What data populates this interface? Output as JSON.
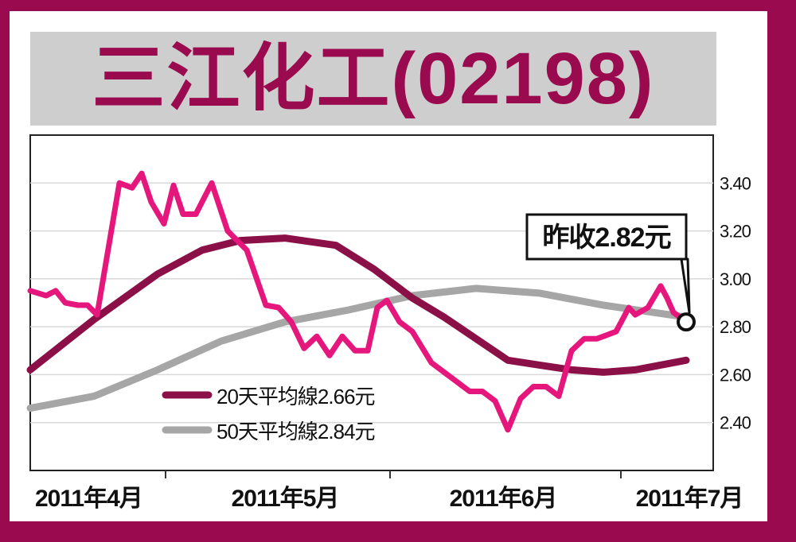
{
  "title": "三江化工(02198)",
  "colors": {
    "frame": "#9a0a4f",
    "price": "#e5177d",
    "ma20": "#8c1048",
    "ma50": "#a6a6a6",
    "grid": "#d9d9d9"
  },
  "chart_data": {
    "type": "line",
    "title": "三江化工(02198)",
    "ylim": [
      2.2,
      3.6
    ],
    "y_ticks": [
      "2.40",
      "2.60",
      "2.80",
      "3.00",
      "3.20",
      "3.40"
    ],
    "x_labels": [
      "2011年4月",
      "2011年5月",
      "2011年6月",
      "2011年7月"
    ],
    "annotation": "昨收2.82元",
    "legend": [
      "20天平均線2.66元",
      "50天平均線2.84元"
    ],
    "series": [
      {
        "key": "price",
        "values": [
          [
            0,
            2.95
          ],
          [
            0.025,
            2.93
          ],
          [
            0.04,
            2.95
          ],
          [
            0.055,
            2.9
          ],
          [
            0.075,
            2.89
          ],
          [
            0.09,
            2.89
          ],
          [
            0.105,
            2.85
          ],
          [
            0.14,
            3.4
          ],
          [
            0.16,
            3.38
          ],
          [
            0.175,
            3.44
          ],
          [
            0.19,
            3.32
          ],
          [
            0.21,
            3.23
          ],
          [
            0.225,
            3.39
          ],
          [
            0.24,
            3.27
          ],
          [
            0.26,
            3.27
          ],
          [
            0.285,
            3.4
          ],
          [
            0.31,
            3.2
          ],
          [
            0.34,
            3.12
          ],
          [
            0.37,
            2.89
          ],
          [
            0.39,
            2.88
          ],
          [
            0.41,
            2.82
          ],
          [
            0.43,
            2.71
          ],
          [
            0.45,
            2.76
          ],
          [
            0.47,
            2.68
          ],
          [
            0.49,
            2.76
          ],
          [
            0.51,
            2.7
          ],
          [
            0.53,
            2.7
          ],
          [
            0.545,
            2.88
          ],
          [
            0.56,
            2.91
          ],
          [
            0.58,
            2.82
          ],
          [
            0.6,
            2.78
          ],
          [
            0.63,
            2.65
          ],
          [
            0.66,
            2.59
          ],
          [
            0.69,
            2.53
          ],
          [
            0.71,
            2.53
          ],
          [
            0.73,
            2.49
          ],
          [
            0.75,
            2.37
          ],
          [
            0.77,
            2.5
          ],
          [
            0.79,
            2.55
          ],
          [
            0.81,
            2.55
          ],
          [
            0.83,
            2.51
          ],
          [
            0.85,
            2.7
          ],
          [
            0.87,
            2.75
          ],
          [
            0.89,
            2.75
          ],
          [
            0.91,
            2.77
          ],
          [
            0.92,
            2.78
          ],
          [
            0.94,
            2.88
          ],
          [
            0.95,
            2.85
          ],
          [
            0.97,
            2.88
          ],
          [
            0.99,
            2.97
          ],
          [
            1.0,
            2.92
          ],
          [
            1.01,
            2.86
          ],
          [
            1.03,
            2.82
          ]
        ]
      },
      {
        "key": "ma20",
        "values": [
          [
            0,
            2.62
          ],
          [
            0.1,
            2.83
          ],
          [
            0.2,
            3.02
          ],
          [
            0.27,
            3.12
          ],
          [
            0.33,
            3.16
          ],
          [
            0.4,
            3.17
          ],
          [
            0.48,
            3.14
          ],
          [
            0.54,
            3.04
          ],
          [
            0.6,
            2.92
          ],
          [
            0.65,
            2.84
          ],
          [
            0.7,
            2.75
          ],
          [
            0.75,
            2.66
          ],
          [
            0.8,
            2.64
          ],
          [
            0.85,
            2.62
          ],
          [
            0.9,
            2.61
          ],
          [
            0.95,
            2.62
          ],
          [
            1.03,
            2.66
          ]
        ]
      },
      {
        "key": "ma50",
        "values": [
          [
            0,
            2.46
          ],
          [
            0.1,
            2.51
          ],
          [
            0.2,
            2.62
          ],
          [
            0.3,
            2.74
          ],
          [
            0.4,
            2.82
          ],
          [
            0.5,
            2.87
          ],
          [
            0.6,
            2.93
          ],
          [
            0.7,
            2.96
          ],
          [
            0.8,
            2.94
          ],
          [
            0.9,
            2.89
          ],
          [
            1.03,
            2.84
          ]
        ]
      }
    ]
  }
}
